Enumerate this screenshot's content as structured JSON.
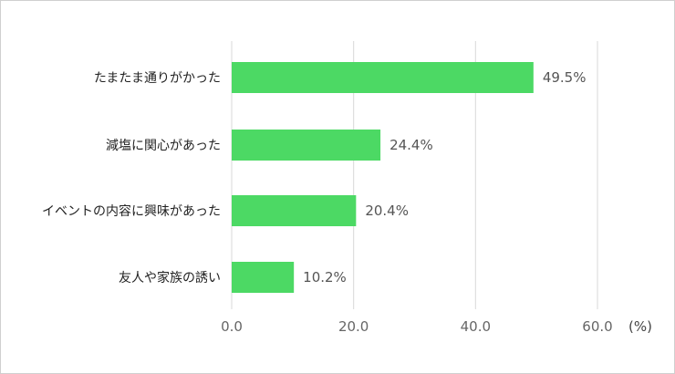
{
  "chart_data": {
    "type": "bar",
    "orientation": "horizontal",
    "categories": [
      "たまたま通りがかった",
      "減塩に関心があった",
      "イベントの内容に興味があった",
      "友人や家族の誘い"
    ],
    "values": [
      49.5,
      24.4,
      20.4,
      10.2
    ],
    "value_labels": [
      "49.5%",
      "24.4%",
      "20.4%",
      "10.2%"
    ],
    "xlim": [
      0,
      60
    ],
    "x_ticks": [
      0,
      20,
      40,
      60
    ],
    "x_tick_labels": [
      "0.0",
      "20.0",
      "40.0",
      "60.0"
    ],
    "x_unit": "(%)",
    "grid": true,
    "bar_color": "#4cd964",
    "grid_color": "#d9d9d9"
  }
}
